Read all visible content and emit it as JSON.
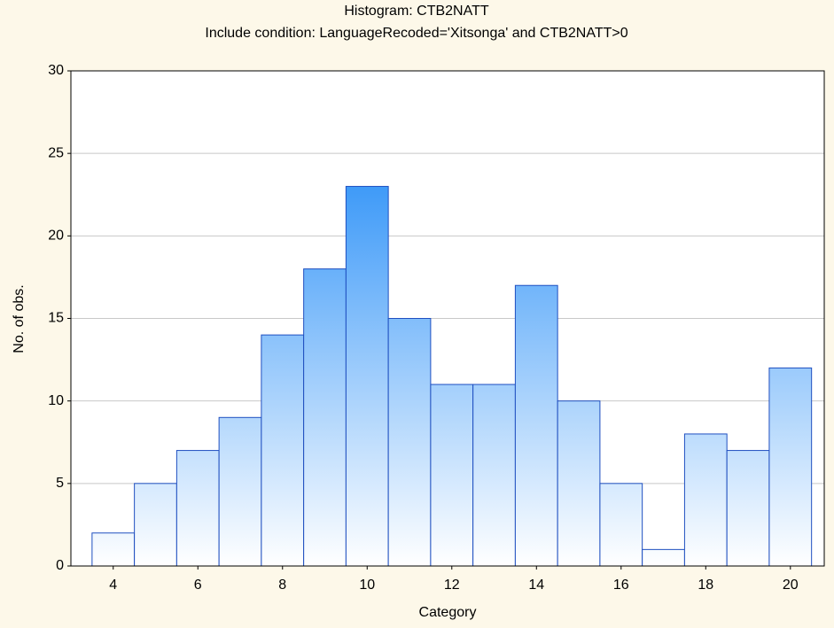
{
  "chart_data": {
    "type": "histogram",
    "title": "Histogram: CTB2NATT",
    "subtitle": "Include condition: LanguageRecoded='Xitsonga' and CTB2NATT>0",
    "xlabel": "Category",
    "ylabel": "No. of obs.",
    "bins": [
      3.5,
      4.5,
      5.5,
      6.5,
      7.5,
      8.5,
      9.5,
      10.5,
      11.5,
      12.5,
      13.5,
      14.5,
      15.5,
      16.5,
      17.5,
      18.5,
      19.5,
      20.5
    ],
    "counts": [
      2,
      5,
      7,
      9,
      14,
      18,
      23,
      15,
      11,
      11,
      17,
      10,
      5,
      1,
      8,
      7,
      12
    ],
    "color": "#3a98f8",
    "edge_color": "#1f4fc0",
    "xlim": [
      3,
      20.8
    ],
    "xticks": [
      4,
      6,
      8,
      10,
      12,
      14,
      16,
      18,
      20
    ],
    "ylim": [
      0,
      30
    ],
    "yticks": [
      0,
      5,
      10,
      15,
      20,
      25,
      30
    ],
    "grid": true
  }
}
